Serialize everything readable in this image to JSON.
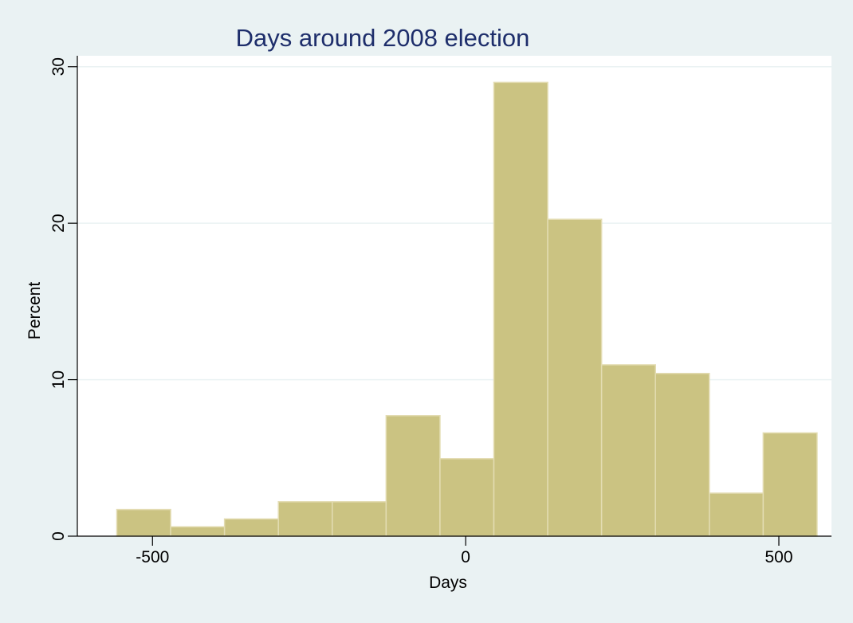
{
  "colors": {
    "background": "#eaf2f3",
    "plot_area": "#ffffff",
    "bar_fill": "#cbc382",
    "bar_stroke": "#e3dcb2",
    "gridline": "#eaf2f3",
    "axis": "#000000",
    "title": "#1e2e6b"
  },
  "chart_data": {
    "type": "bar",
    "title": "Days around 2008 election",
    "xlabel": "Days",
    "ylabel": "Percent",
    "xlim": [
      -620,
      584
    ],
    "ylim": [
      0,
      30.7
    ],
    "grid": true,
    "xticks": [
      -500,
      0,
      500
    ],
    "yticks": [
      0,
      10,
      20,
      30
    ],
    "bins": [
      {
        "x0": -557,
        "x1": -471,
        "value": 1.7
      },
      {
        "x0": -471,
        "x1": -385,
        "value": 0.6
      },
      {
        "x0": -385,
        "x1": -299,
        "value": 1.1
      },
      {
        "x0": -299,
        "x1": -213,
        "value": 2.2
      },
      {
        "x0": -213,
        "x1": -127,
        "value": 2.2
      },
      {
        "x0": -127,
        "x1": -41,
        "value": 7.7
      },
      {
        "x0": -41,
        "x1": 45,
        "value": 4.95
      },
      {
        "x0": 45,
        "x1": 131,
        "value": 29.0
      },
      {
        "x0": 131,
        "x1": 217,
        "value": 20.25
      },
      {
        "x0": 217,
        "x1": 303,
        "value": 10.95
      },
      {
        "x0": 303,
        "x1": 389,
        "value": 10.4
      },
      {
        "x0": 389,
        "x1": 475,
        "value": 2.75
      },
      {
        "x0": 475,
        "x1": 561,
        "value": 6.6
      }
    ]
  }
}
